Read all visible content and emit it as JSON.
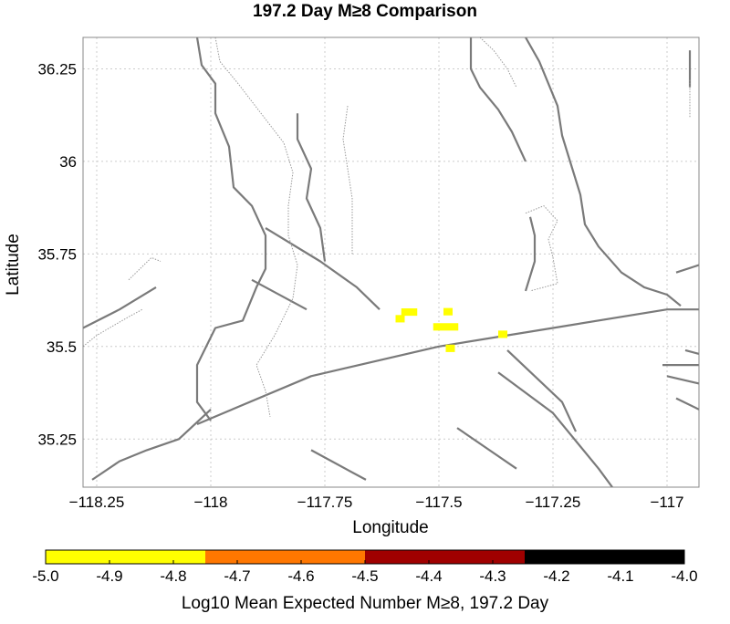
{
  "title": "197.2 Day M≥8 Comparison",
  "x_axis": {
    "label": "Longitude",
    "range": [
      -118.28,
      -116.93
    ],
    "ticks": [
      -118.25,
      -118.0,
      -117.75,
      -117.5,
      -117.25,
      -117.0
    ],
    "tick_labels": [
      "−118.25",
      "−118",
      "−117.75",
      "−117.5",
      "−117.25",
      "−117"
    ]
  },
  "y_axis": {
    "label": "Latitude",
    "range": [
      35.12,
      36.335
    ],
    "ticks": [
      35.25,
      35.5,
      35.75,
      36.0,
      36.25
    ],
    "tick_labels": [
      "35.25",
      "35.5",
      "35.75",
      "36",
      "36.25"
    ]
  },
  "grid": true,
  "colorbar": {
    "label": "Log10 Mean Expected Number M≥8, 197.2 Day",
    "range": [
      -5.0,
      -4.0
    ],
    "ticks": [
      -5.0,
      -4.9,
      -4.8,
      -4.7,
      -4.6,
      -4.5,
      -4.4,
      -4.3,
      -4.2,
      -4.1,
      -4.0
    ],
    "tick_labels": [
      "-5.0",
      "-4.9",
      "-4.8",
      "-4.7",
      "-4.6",
      "-4.5",
      "-4.4",
      "-4.3",
      "-4.2",
      "-4.1",
      "-4.0"
    ],
    "bands": [
      {
        "from": -5.0,
        "to": -4.75,
        "color": "#ffff00"
      },
      {
        "from": -4.75,
        "to": -4.5,
        "color": "#ff7700"
      },
      {
        "from": -4.5,
        "to": -4.25,
        "color": "#a00000"
      },
      {
        "from": -4.25,
        "to": -4.0,
        "color": "#000000"
      }
    ]
  },
  "colors": {
    "fault": "#7a7a7a",
    "fault_dotted": "#999999",
    "grid": "#cccccc",
    "cell": "#ffff00",
    "frame": "#888888"
  },
  "chart_data": {
    "type": "heatmap",
    "title": "197.2 Day M≥8 Comparison",
    "xlabel": "Longitude",
    "ylabel": "Latitude",
    "xlim": [
      -118.28,
      -116.93
    ],
    "ylim": [
      35.12,
      36.335
    ],
    "cells": [
      {
        "lon": -117.585,
        "lat": 35.575,
        "w": 0.02,
        "h": 0.02,
        "value": -4.9
      },
      {
        "lon": -117.565,
        "lat": 35.593,
        "w": 0.035,
        "h": 0.02,
        "value": -4.9
      },
      {
        "lon": -117.48,
        "lat": 35.594,
        "w": 0.02,
        "h": 0.02,
        "value": -4.9
      },
      {
        "lon": -117.485,
        "lat": 35.553,
        "w": 0.055,
        "h": 0.02,
        "value": -4.9
      },
      {
        "lon": -117.36,
        "lat": 35.533,
        "w": 0.02,
        "h": 0.02,
        "value": -4.9
      },
      {
        "lon": -117.475,
        "lat": 35.495,
        "w": 0.02,
        "h": 0.02,
        "value": -4.9
      }
    ],
    "faults": [
      {
        "style": "solid",
        "points": [
          [
            -118.03,
            35.29
          ],
          [
            -117.78,
            35.42
          ],
          [
            -117.5,
            35.5
          ],
          [
            -117.25,
            35.55
          ],
          [
            -117.0,
            35.6
          ],
          [
            -116.93,
            35.6
          ]
        ]
      },
      {
        "style": "solid",
        "points": [
          [
            -117.91,
            35.68
          ],
          [
            -117.79,
            35.6
          ]
        ]
      },
      {
        "style": "solid",
        "points": [
          [
            -117.88,
            35.82
          ],
          [
            -117.76,
            35.73
          ],
          [
            -117.68,
            35.66
          ],
          [
            -117.63,
            35.6
          ]
        ]
      },
      {
        "style": "solid",
        "points": [
          [
            -118.03,
            36.335
          ],
          [
            -118.02,
            36.26
          ],
          [
            -117.99,
            36.21
          ],
          [
            -117.99,
            36.13
          ],
          [
            -117.96,
            36.04
          ],
          [
            -117.95,
            35.93
          ],
          [
            -117.91,
            35.88
          ],
          [
            -117.88,
            35.8
          ],
          [
            -117.88,
            35.71
          ],
          [
            -117.9,
            35.66
          ],
          [
            -117.93,
            35.57
          ],
          [
            -117.99,
            35.55
          ],
          [
            -118.03,
            35.45
          ],
          [
            -118.03,
            35.35
          ],
          [
            -118.0,
            35.3
          ]
        ]
      },
      {
        "style": "solid",
        "points": [
          [
            -117.81,
            36.13
          ],
          [
            -117.81,
            36.06
          ],
          [
            -117.78,
            35.98
          ],
          [
            -117.79,
            35.9
          ],
          [
            -117.76,
            35.82
          ],
          [
            -117.75,
            35.73
          ]
        ]
      },
      {
        "style": "solid",
        "points": [
          [
            -117.43,
            36.335
          ],
          [
            -117.43,
            36.25
          ],
          [
            -117.41,
            36.2
          ],
          [
            -117.37,
            36.14
          ],
          [
            -117.34,
            36.08
          ],
          [
            -117.31,
            36.0
          ]
        ]
      },
      {
        "style": "solid",
        "points": [
          [
            -117.31,
            36.335
          ],
          [
            -117.28,
            36.27
          ],
          [
            -117.26,
            36.21
          ],
          [
            -117.24,
            36.15
          ],
          [
            -117.23,
            36.07
          ],
          [
            -117.21,
            35.99
          ],
          [
            -117.19,
            35.91
          ],
          [
            -117.18,
            35.83
          ],
          [
            -117.15,
            35.77
          ],
          [
            -117.1,
            35.7
          ],
          [
            -117.05,
            35.66
          ],
          [
            -117.0,
            35.64
          ],
          [
            -116.97,
            35.61
          ]
        ]
      },
      {
        "style": "solid",
        "points": [
          [
            -117.3,
            35.85
          ],
          [
            -117.29,
            35.8
          ],
          [
            -117.29,
            35.73
          ],
          [
            -117.31,
            35.65
          ]
        ]
      },
      {
        "style": "solid",
        "points": [
          [
            -117.35,
            35.49
          ],
          [
            -117.23,
            35.35
          ],
          [
            -117.2,
            35.27
          ]
        ]
      },
      {
        "style": "solid",
        "points": [
          [
            -117.37,
            35.43
          ],
          [
            -117.25,
            35.32
          ],
          [
            -117.15,
            35.17
          ],
          [
            -117.12,
            35.12
          ]
        ]
      },
      {
        "style": "solid",
        "points": [
          [
            -117.46,
            35.28
          ],
          [
            -117.33,
            35.17
          ]
        ]
      },
      {
        "style": "solid",
        "points": [
          [
            -117.78,
            35.22
          ],
          [
            -117.66,
            35.14
          ]
        ]
      },
      {
        "style": "solid",
        "points": [
          [
            -118.0,
            35.33
          ],
          [
            -118.07,
            35.25
          ],
          [
            -118.14,
            35.22
          ],
          [
            -118.2,
            35.19
          ],
          [
            -118.26,
            35.14
          ]
        ]
      },
      {
        "style": "solid",
        "points": [
          [
            -118.28,
            35.55
          ],
          [
            -118.2,
            35.6
          ],
          [
            -118.12,
            35.66
          ]
        ]
      },
      {
        "style": "solid",
        "points": [
          [
            -116.96,
            35.49
          ],
          [
            -116.93,
            35.48
          ]
        ]
      },
      {
        "style": "solid",
        "points": [
          [
            -117.01,
            35.45
          ],
          [
            -116.93,
            35.45
          ]
        ]
      },
      {
        "style": "solid",
        "points": [
          [
            -117.0,
            35.42
          ],
          [
            -116.93,
            35.4
          ]
        ]
      },
      {
        "style": "solid",
        "points": [
          [
            -116.98,
            35.36
          ],
          [
            -116.93,
            35.33
          ]
        ]
      },
      {
        "style": "solid",
        "points": [
          [
            -116.93,
            35.72
          ],
          [
            -116.98,
            35.7
          ]
        ]
      },
      {
        "style": "solid",
        "points": [
          [
            -116.95,
            36.3
          ],
          [
            -116.95,
            36.2
          ]
        ]
      },
      {
        "style": "dotted",
        "points": [
          [
            -117.99,
            36.335
          ],
          [
            -117.98,
            36.27
          ],
          [
            -117.94,
            36.21
          ],
          [
            -117.89,
            36.13
          ],
          [
            -117.84,
            36.05
          ],
          [
            -117.82,
            35.97
          ],
          [
            -117.83,
            35.88
          ],
          [
            -117.83,
            35.8
          ],
          [
            -117.81,
            35.72
          ],
          [
            -117.82,
            35.63
          ],
          [
            -117.86,
            35.53
          ],
          [
            -117.9,
            35.45
          ],
          [
            -117.88,
            35.38
          ],
          [
            -117.87,
            35.31
          ]
        ]
      },
      {
        "style": "dotted",
        "points": [
          [
            -117.7,
            36.15
          ],
          [
            -117.71,
            36.06
          ],
          [
            -117.7,
            35.98
          ],
          [
            -117.69,
            35.9
          ],
          [
            -117.69,
            35.82
          ],
          [
            -117.69,
            35.75
          ]
        ]
      },
      {
        "style": "dotted",
        "points": [
          [
            -117.41,
            36.335
          ],
          [
            -117.38,
            36.3
          ],
          [
            -117.35,
            36.25
          ],
          [
            -117.33,
            36.2
          ]
        ]
      },
      {
        "style": "dotted",
        "points": [
          [
            -117.31,
            35.86
          ],
          [
            -117.27,
            35.88
          ],
          [
            -117.24,
            35.84
          ],
          [
            -117.26,
            35.79
          ],
          [
            -117.25,
            35.74
          ],
          [
            -117.24,
            35.67
          ],
          [
            -117.3,
            35.65
          ]
        ]
      },
      {
        "style": "dotted",
        "points": [
          [
            -118.28,
            35.5
          ],
          [
            -118.25,
            35.53
          ],
          [
            -118.18,
            35.58
          ],
          [
            -118.15,
            35.6
          ]
        ]
      },
      {
        "style": "dotted",
        "points": [
          [
            -118.18,
            35.68
          ],
          [
            -118.13,
            35.74
          ],
          [
            -118.11,
            35.73
          ]
        ]
      },
      {
        "style": "dotted",
        "points": [
          [
            -116.95,
            36.22
          ],
          [
            -116.95,
            36.12
          ]
        ]
      }
    ]
  }
}
